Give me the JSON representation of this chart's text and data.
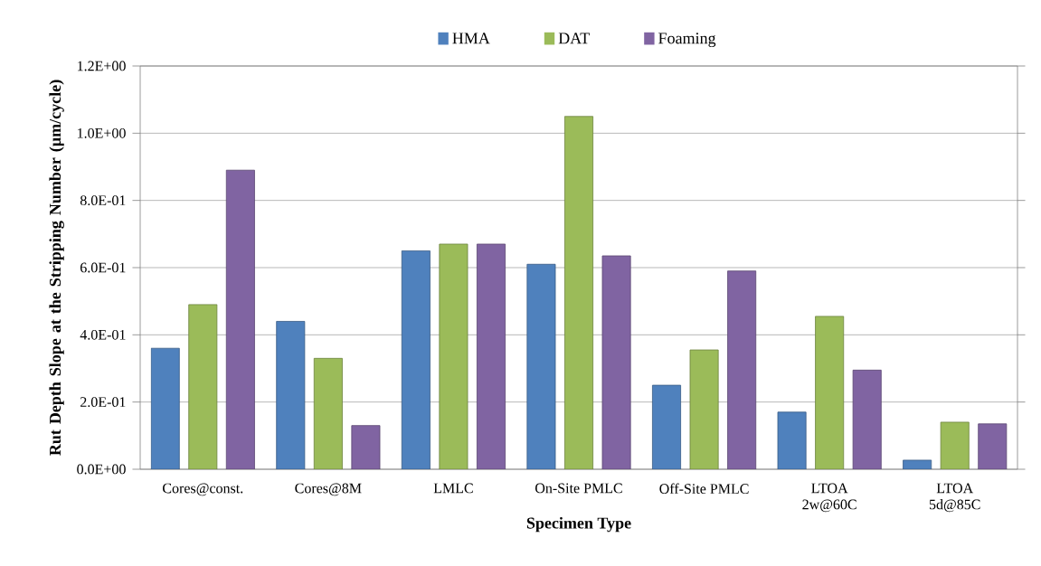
{
  "chart_data": {
    "type": "bar",
    "xlabel": "Specimen Type",
    "ylabel": "Rut Depth Slope  at the Stripping Number (µm/cycle)",
    "categories": [
      "Cores@const.",
      "Cores@8M",
      "LMLC",
      "On-Site PMLC",
      "Off-Site PMLC",
      "LTOA\n2w@60C",
      "LTOA\n5d@85C"
    ],
    "series": [
      {
        "name": "HMA",
        "color": "#4f81bd",
        "values": [
          0.36,
          0.44,
          0.65,
          0.61,
          0.25,
          0.17,
          0.027
        ]
      },
      {
        "name": "DAT",
        "color": "#9bbb59",
        "values": [
          0.49,
          0.33,
          0.67,
          1.05,
          0.355,
          0.455,
          0.14
        ]
      },
      {
        "name": "Foaming",
        "color": "#8064a2",
        "values": [
          0.89,
          0.13,
          0.67,
          0.635,
          0.59,
          0.295,
          0.135
        ]
      }
    ],
    "ylim": [
      0,
      1.2
    ],
    "yticks": [
      {
        "value": 0,
        "label": "0.0E+00"
      },
      {
        "value": 0.2,
        "label": "2.0E-01"
      },
      {
        "value": 0.4,
        "label": "4.0E-01"
      },
      {
        "value": 0.6,
        "label": "6.0E-01"
      },
      {
        "value": 0.8,
        "label": "8.0E-01"
      },
      {
        "value": 1.0,
        "label": "1.0E+00"
      },
      {
        "value": 1.2,
        "label": "1.2E+00"
      }
    ],
    "grid": "y",
    "legend": "top"
  }
}
